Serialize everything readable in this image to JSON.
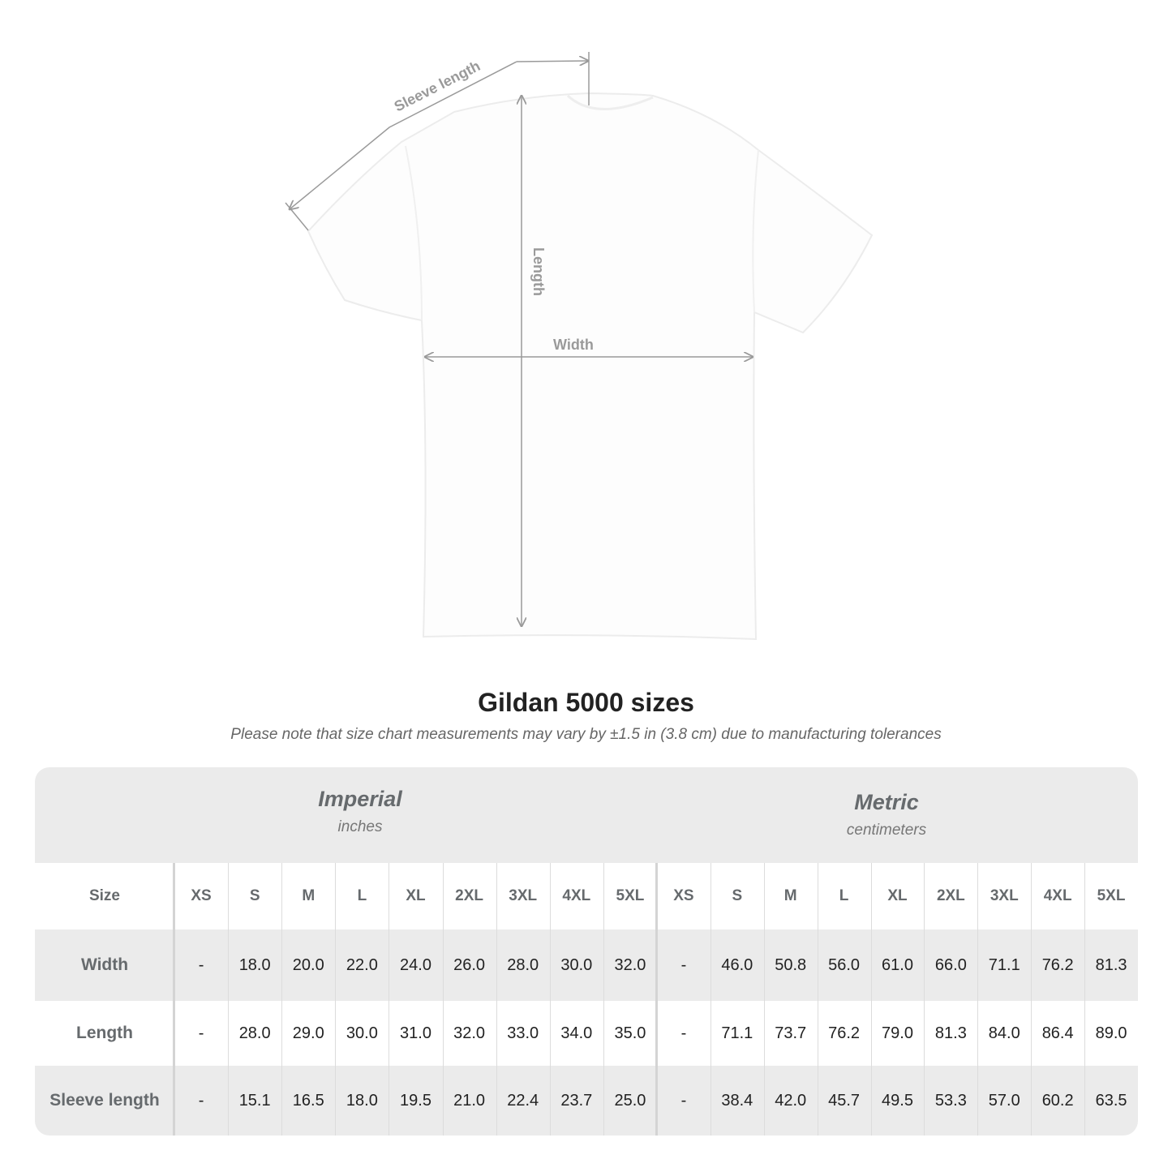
{
  "diagram": {
    "labels": {
      "sleeve_length": "Sleeve length",
      "length": "Length",
      "width": "Width"
    }
  },
  "title": "Gildan 5000 sizes",
  "subtitle": "Please note that size chart measurements may vary by ±1.5 in (3.8 cm) due to manufacturing tolerances",
  "table": {
    "imperial": {
      "title": "Imperial",
      "unit": "inches"
    },
    "metric": {
      "title": "Metric",
      "unit": "centimeters"
    },
    "size_label": "Size",
    "sizes": [
      "XS",
      "S",
      "M",
      "L",
      "XL",
      "2XL",
      "3XL",
      "4XL",
      "5XL"
    ],
    "rows": [
      {
        "label": "Width",
        "imperial": [
          "-",
          "18.0",
          "20.0",
          "22.0",
          "24.0",
          "26.0",
          "28.0",
          "30.0",
          "32.0"
        ],
        "metric": [
          "-",
          "46.0",
          "50.8",
          "56.0",
          "61.0",
          "66.0",
          "71.1",
          "76.2",
          "81.3"
        ]
      },
      {
        "label": "Length",
        "imperial": [
          "-",
          "28.0",
          "29.0",
          "30.0",
          "31.0",
          "32.0",
          "33.0",
          "34.0",
          "35.0"
        ],
        "metric": [
          "-",
          "71.1",
          "73.7",
          "76.2",
          "79.0",
          "81.3",
          "84.0",
          "86.4",
          "89.0"
        ]
      },
      {
        "label": "Sleeve length",
        "imperial": [
          "-",
          "15.1",
          "16.5",
          "18.0",
          "19.5",
          "21.0",
          "22.4",
          "23.7",
          "25.0"
        ],
        "metric": [
          "-",
          "38.4",
          "42.0",
          "45.7",
          "49.5",
          "53.3",
          "57.0",
          "60.2",
          "63.5"
        ]
      }
    ]
  },
  "colors": {
    "band": "#ebebeb",
    "label": "#666a6d",
    "arrow": "#9a9a9a"
  }
}
